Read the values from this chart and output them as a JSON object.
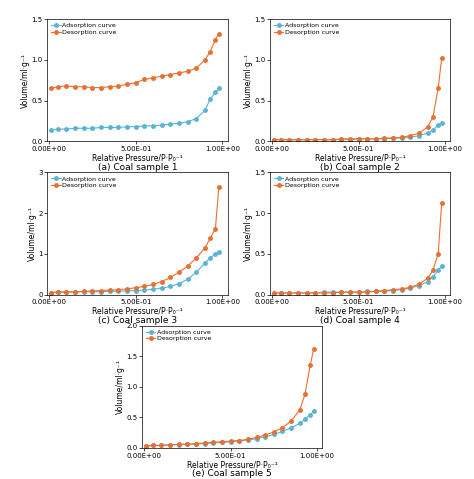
{
  "subplot_titles": [
    "(a) Coal sample 1",
    "(b) Coal sample 2",
    "(c) Coal sample 3",
    "(d) Coal sample 4",
    "(e) Coal sample 5"
  ],
  "ylabel": "Volume/ml·g⁻¹",
  "xlabel": "Relative Pressure/P·P₀⁻¹",
  "adsorption_color": "#5ab4d6",
  "desorption_color": "#e87030",
  "legend_labels": [
    "Adsorption curve",
    "Desorption curve"
  ],
  "ylims": [
    1.5,
    1.5,
    3.0,
    1.5,
    2.0
  ],
  "yticks": [
    [
      0,
      0.5,
      1.0,
      1.5
    ],
    [
      0,
      0.5,
      1.0,
      1.5
    ],
    [
      0,
      1.0,
      2.0,
      3.0
    ],
    [
      0,
      0.5,
      1.0,
      1.5
    ],
    [
      0,
      0.5,
      1.0,
      1.5,
      2.0
    ]
  ],
  "adsorption_data": [
    {
      "x": [
        0.01,
        0.05,
        0.1,
        0.15,
        0.2,
        0.25,
        0.3,
        0.35,
        0.4,
        0.45,
        0.5,
        0.55,
        0.6,
        0.65,
        0.7,
        0.75,
        0.8,
        0.85,
        0.9,
        0.93,
        0.96,
        0.98
      ],
      "y": [
        0.14,
        0.15,
        0.15,
        0.16,
        0.16,
        0.16,
        0.17,
        0.17,
        0.17,
        0.18,
        0.18,
        0.19,
        0.19,
        0.2,
        0.21,
        0.22,
        0.24,
        0.28,
        0.38,
        0.52,
        0.6,
        0.65
      ]
    },
    {
      "x": [
        0.01,
        0.05,
        0.1,
        0.15,
        0.2,
        0.25,
        0.3,
        0.35,
        0.4,
        0.45,
        0.5,
        0.55,
        0.6,
        0.65,
        0.7,
        0.75,
        0.8,
        0.85,
        0.9,
        0.93,
        0.96,
        0.98
      ],
      "y": [
        0.02,
        0.02,
        0.02,
        0.02,
        0.02,
        0.02,
        0.02,
        0.02,
        0.02,
        0.02,
        0.03,
        0.03,
        0.03,
        0.03,
        0.04,
        0.04,
        0.05,
        0.07,
        0.1,
        0.14,
        0.2,
        0.22
      ]
    },
    {
      "x": [
        0.01,
        0.05,
        0.1,
        0.15,
        0.2,
        0.25,
        0.3,
        0.35,
        0.4,
        0.45,
        0.5,
        0.55,
        0.6,
        0.65,
        0.7,
        0.75,
        0.8,
        0.85,
        0.9,
        0.93,
        0.96,
        0.98
      ],
      "y": [
        0.05,
        0.06,
        0.06,
        0.06,
        0.07,
        0.07,
        0.07,
        0.08,
        0.08,
        0.09,
        0.1,
        0.11,
        0.13,
        0.16,
        0.2,
        0.27,
        0.38,
        0.55,
        0.78,
        0.9,
        1.0,
        1.05
      ]
    },
    {
      "x": [
        0.01,
        0.05,
        0.1,
        0.15,
        0.2,
        0.25,
        0.3,
        0.35,
        0.4,
        0.45,
        0.5,
        0.55,
        0.6,
        0.65,
        0.7,
        0.75,
        0.8,
        0.85,
        0.9,
        0.93,
        0.96,
        0.98
      ],
      "y": [
        0.02,
        0.02,
        0.02,
        0.02,
        0.02,
        0.02,
        0.03,
        0.03,
        0.03,
        0.03,
        0.03,
        0.04,
        0.04,
        0.04,
        0.05,
        0.06,
        0.08,
        0.11,
        0.16,
        0.22,
        0.3,
        0.35
      ]
    },
    {
      "x": [
        0.01,
        0.05,
        0.1,
        0.15,
        0.2,
        0.25,
        0.3,
        0.35,
        0.4,
        0.45,
        0.5,
        0.55,
        0.6,
        0.65,
        0.7,
        0.75,
        0.8,
        0.85,
        0.9,
        0.93,
        0.96,
        0.98
      ],
      "y": [
        0.03,
        0.04,
        0.04,
        0.05,
        0.05,
        0.06,
        0.06,
        0.07,
        0.08,
        0.09,
        0.1,
        0.11,
        0.13,
        0.15,
        0.18,
        0.22,
        0.27,
        0.33,
        0.4,
        0.47,
        0.54,
        0.6
      ]
    }
  ],
  "desorption_data": [
    {
      "x": [
        0.01,
        0.05,
        0.1,
        0.15,
        0.2,
        0.25,
        0.3,
        0.35,
        0.4,
        0.45,
        0.5,
        0.55,
        0.6,
        0.65,
        0.7,
        0.75,
        0.8,
        0.85,
        0.9,
        0.93,
        0.96,
        0.98
      ],
      "y": [
        0.65,
        0.67,
        0.68,
        0.67,
        0.67,
        0.66,
        0.66,
        0.67,
        0.68,
        0.7,
        0.72,
        0.76,
        0.78,
        0.8,
        0.82,
        0.84,
        0.86,
        0.9,
        1.0,
        1.1,
        1.25,
        1.32
      ]
    },
    {
      "x": [
        0.01,
        0.05,
        0.1,
        0.15,
        0.2,
        0.25,
        0.3,
        0.35,
        0.4,
        0.45,
        0.5,
        0.55,
        0.6,
        0.65,
        0.7,
        0.75,
        0.8,
        0.85,
        0.9,
        0.93,
        0.96,
        0.98
      ],
      "y": [
        0.02,
        0.02,
        0.02,
        0.02,
        0.02,
        0.02,
        0.02,
        0.02,
        0.03,
        0.03,
        0.03,
        0.03,
        0.03,
        0.04,
        0.04,
        0.05,
        0.07,
        0.1,
        0.18,
        0.3,
        0.65,
        1.02
      ]
    },
    {
      "x": [
        0.01,
        0.05,
        0.1,
        0.15,
        0.2,
        0.25,
        0.3,
        0.35,
        0.4,
        0.45,
        0.5,
        0.55,
        0.6,
        0.65,
        0.7,
        0.75,
        0.8,
        0.85,
        0.9,
        0.93,
        0.96,
        0.98
      ],
      "y": [
        0.05,
        0.06,
        0.07,
        0.07,
        0.08,
        0.09,
        0.1,
        0.11,
        0.12,
        0.14,
        0.17,
        0.2,
        0.25,
        0.32,
        0.42,
        0.55,
        0.7,
        0.9,
        1.15,
        1.38,
        1.62,
        2.65
      ]
    },
    {
      "x": [
        0.01,
        0.05,
        0.1,
        0.15,
        0.2,
        0.25,
        0.3,
        0.35,
        0.4,
        0.45,
        0.5,
        0.55,
        0.6,
        0.65,
        0.7,
        0.75,
        0.8,
        0.85,
        0.9,
        0.93,
        0.96,
        0.98
      ],
      "y": [
        0.02,
        0.02,
        0.02,
        0.02,
        0.02,
        0.02,
        0.02,
        0.02,
        0.03,
        0.03,
        0.03,
        0.03,
        0.04,
        0.05,
        0.06,
        0.07,
        0.09,
        0.13,
        0.2,
        0.3,
        0.5,
        1.12
      ]
    },
    {
      "x": [
        0.01,
        0.05,
        0.1,
        0.15,
        0.2,
        0.25,
        0.3,
        0.35,
        0.4,
        0.45,
        0.5,
        0.55,
        0.6,
        0.65,
        0.7,
        0.75,
        0.8,
        0.85,
        0.9,
        0.93,
        0.96,
        0.98
      ],
      "y": [
        0.03,
        0.04,
        0.04,
        0.05,
        0.06,
        0.06,
        0.07,
        0.08,
        0.09,
        0.1,
        0.11,
        0.12,
        0.14,
        0.17,
        0.21,
        0.26,
        0.33,
        0.44,
        0.62,
        0.88,
        1.35,
        1.62
      ]
    }
  ]
}
